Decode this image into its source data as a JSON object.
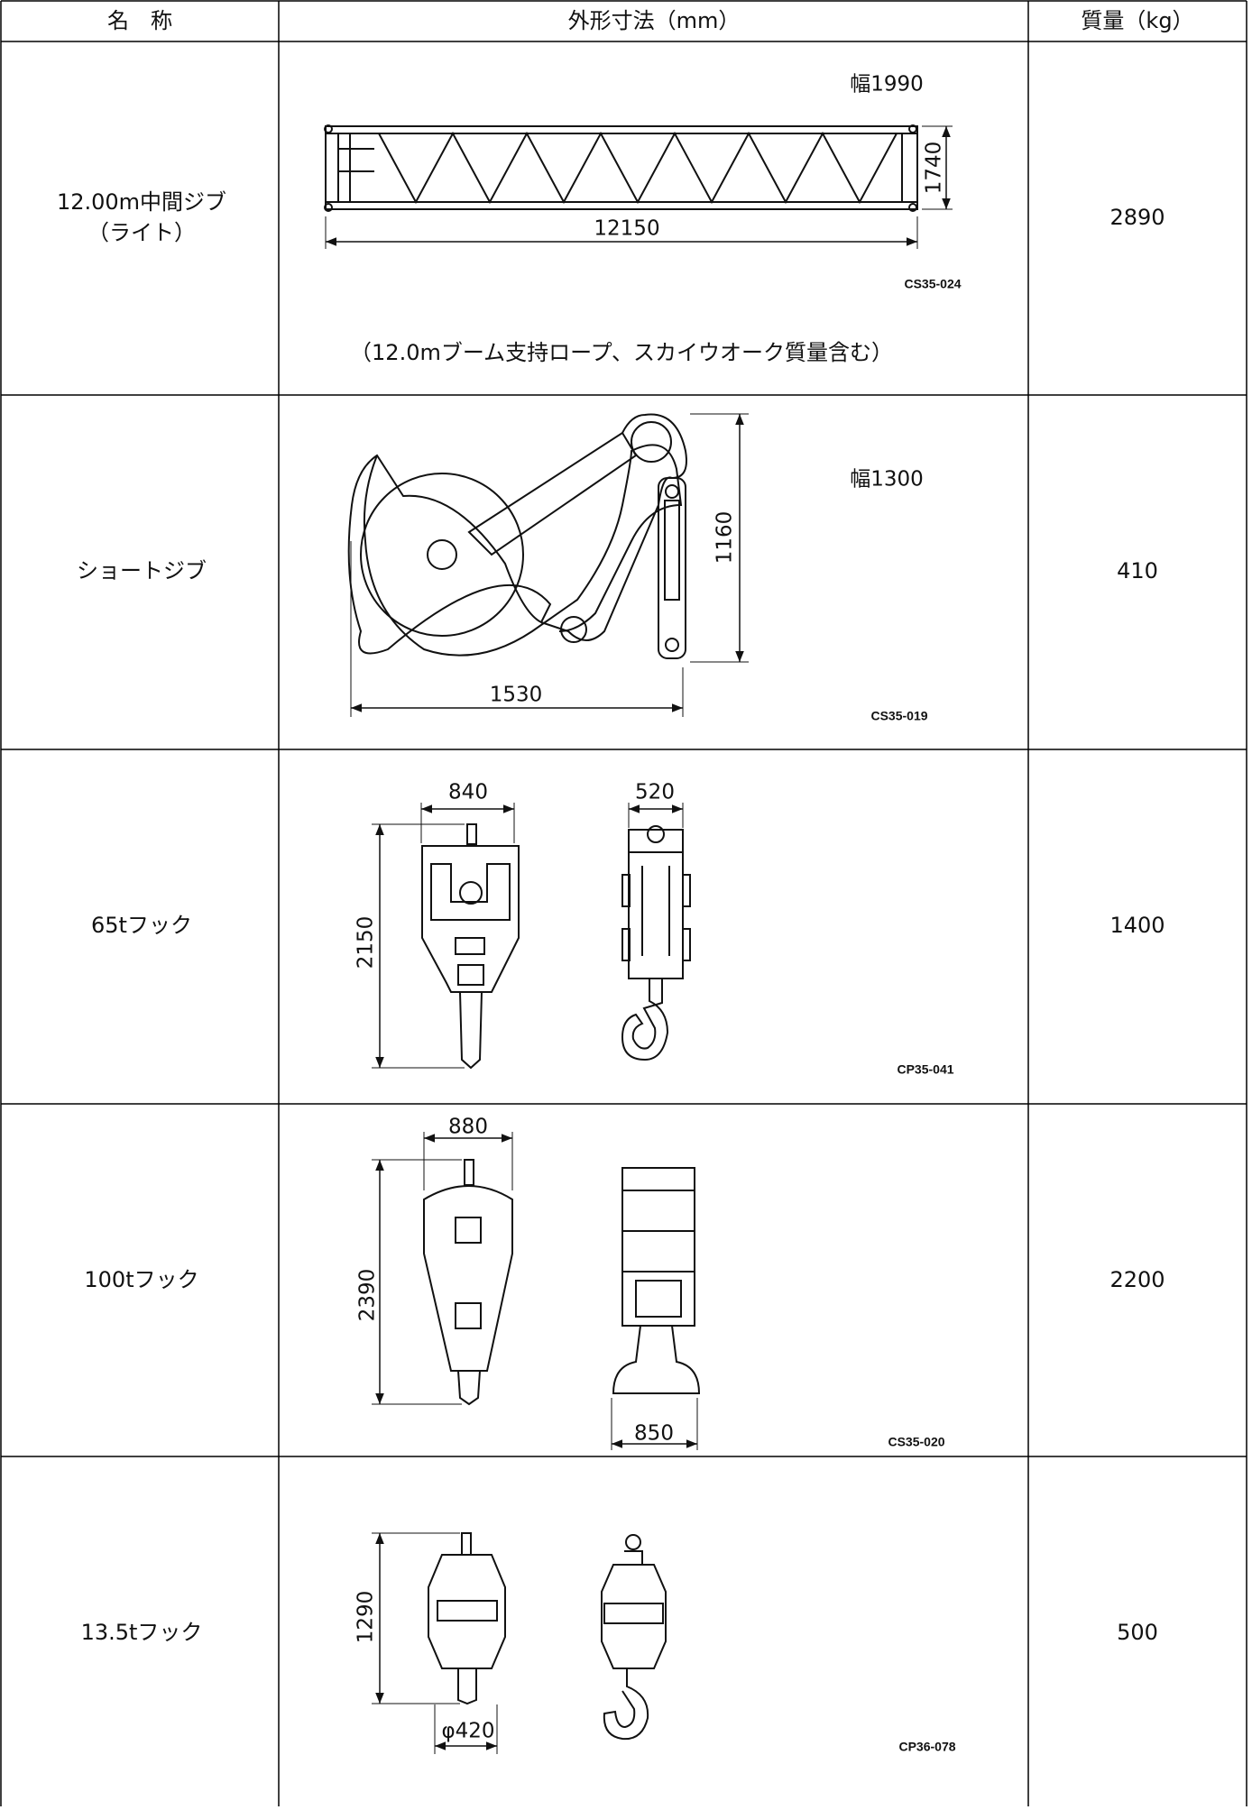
{
  "header": {
    "columns": [
      "名　称",
      "外形寸法（mm）",
      "質量（kg）"
    ]
  },
  "rows": [
    {
      "name": [
        "12.00m中間ジブ",
        "（ライト）"
      ],
      "dimensions": [
        "幅1990",
        "1740",
        "12150"
      ],
      "drawing_code": "CS35-024",
      "note": "（12.0mブーム支持ロープ、スカイウオーク質量含む）",
      "mass": "2890"
    },
    {
      "name": [
        "ショートジブ"
      ],
      "dimensions": [
        "幅1300",
        "1160",
        "1530"
      ],
      "drawing_code": "CS35-019",
      "mass": "410"
    },
    {
      "name": [
        "65tフック"
      ],
      "dimensions": [
        "840",
        "520",
        "2150"
      ],
      "drawing_code": "CP35-041",
      "mass": "1400"
    },
    {
      "name": [
        "100tフック"
      ],
      "dimensions": [
        "880",
        "2390",
        "850"
      ],
      "drawing_code": "CS35-020",
      "mass": "2200"
    },
    {
      "name": [
        "13.5tフック"
      ],
      "dimensions": [
        "1290",
        "φ420"
      ],
      "drawing_code": "CP36-078",
      "mass": "500"
    }
  ]
}
